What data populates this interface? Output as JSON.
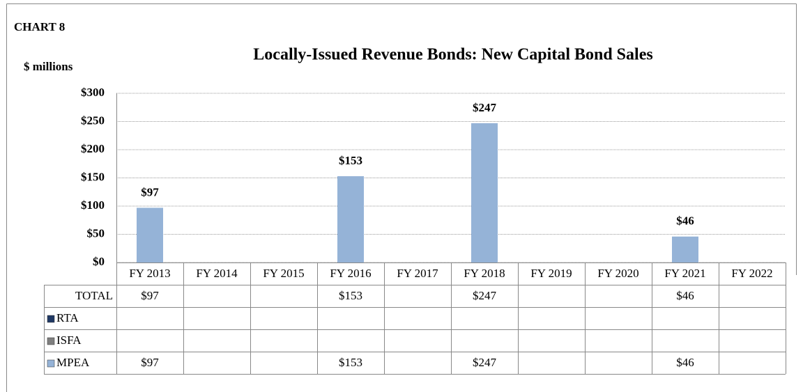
{
  "chart_data": {
    "type": "bar",
    "stacked": true,
    "label": "CHART 8",
    "title": "Locally-Issued Revenue Bonds: New Capital Bond Sales",
    "y_label": "$ millions",
    "categories": [
      "FY 2013",
      "FY 2014",
      "FY 2015",
      "FY 2016",
      "FY 2017",
      "FY 2018",
      "FY 2019",
      "FY 2020",
      "FY 2021",
      "FY 2022"
    ],
    "ylim": [
      0,
      300
    ],
    "yticks": [
      {
        "value": 0,
        "label": "$0"
      },
      {
        "value": 50,
        "label": "$50"
      },
      {
        "value": 100,
        "label": "$100"
      },
      {
        "value": 150,
        "label": "$150"
      },
      {
        "value": 200,
        "label": "$200"
      },
      {
        "value": 250,
        "label": "$250"
      },
      {
        "value": 300,
        "label": "$300"
      }
    ],
    "grid": true,
    "total": {
      "name": "TOTAL",
      "values": [
        97,
        null,
        null,
        153,
        null,
        247,
        null,
        null,
        46,
        null
      ],
      "value_labels": [
        "$97",
        null,
        null,
        "$153",
        null,
        "$247",
        null,
        null,
        "$46",
        null
      ]
    },
    "series": [
      {
        "name": "RTA",
        "color": "#1f3864",
        "values": [
          null,
          null,
          null,
          null,
          null,
          null,
          null,
          null,
          null,
          null
        ]
      },
      {
        "name": "ISFA",
        "color": "#7f7f7f",
        "values": [
          null,
          null,
          null,
          null,
          null,
          null,
          null,
          null,
          null,
          null
        ]
      },
      {
        "name": "MPEA",
        "color": "#95b3d7",
        "values": [
          97,
          null,
          null,
          153,
          null,
          247,
          null,
          null,
          46,
          null
        ],
        "value_labels": [
          "$97",
          null,
          null,
          "$153",
          null,
          "$247",
          null,
          null,
          "$46",
          null
        ]
      }
    ]
  }
}
